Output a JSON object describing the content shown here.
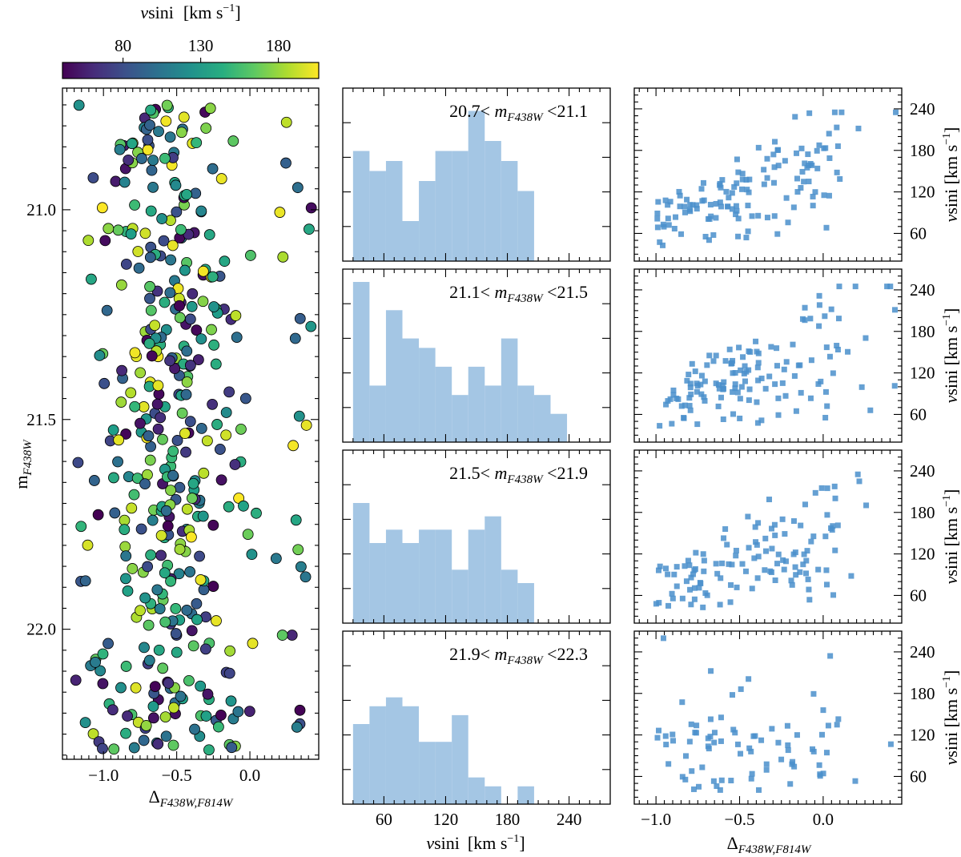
{
  "chart_data": [
    {
      "type": "scatter",
      "name": "cmd-scatter",
      "xlabel_main": "Δ",
      "xlabel_sub": "F438W,F814W",
      "ylabel_main": "m",
      "ylabel_sub": "F438W",
      "xlim": [
        -1.28,
        0.47
      ],
      "ylim": [
        22.31,
        20.71
      ],
      "xticks": [
        -1.0,
        -0.5,
        0.0
      ],
      "xtick_labels": [
        "−1.0",
        "−0.5",
        "0.0"
      ],
      "yticks": [
        21.0,
        21.5,
        22.0
      ],
      "ytick_labels": [
        "21.0",
        "21.5",
        "22.0"
      ],
      "colorbar": {
        "title_italic": "v",
        "title_rest": "sini",
        "title_units": "[km s",
        "title_sup": "−1",
        "title_close": "]",
        "range": [
          41,
          206
        ],
        "ticks": [
          80,
          130,
          180
        ],
        "tick_labels": [
          "80",
          "130",
          "180"
        ],
        "colormap": "viridis"
      },
      "n_points": 420,
      "note": "color encodes vsini"
    },
    {
      "type": "histogram",
      "name": "vsini-histograms",
      "xlabel_italic": "v",
      "xlabel_rest": "sini",
      "xlabel_units": "[km s",
      "xlabel_sup": "−1",
      "xlabel_close": "]",
      "xlim": [
        20,
        280
      ],
      "xticks": [
        60,
        120,
        180,
        240
      ],
      "xtick_labels": [
        "60",
        "120",
        "180",
        "240"
      ],
      "bin_edges": [
        30,
        46,
        62,
        78,
        94,
        110,
        126,
        142,
        158,
        174,
        190,
        206,
        222,
        238,
        254
      ],
      "color": "#a4c6e4",
      "panels": [
        {
          "label_low": "20.7",
          "label_high": "21.1",
          "counts": [
            11,
            9,
            10,
            4,
            8,
            11,
            11,
            15,
            12,
            10,
            7,
            0,
            0,
            0
          ],
          "ymax": 16
        },
        {
          "label_low": "21.1",
          "label_high": "21.5",
          "counts": [
            17,
            6,
            14,
            11,
            10,
            8,
            5,
            8,
            6,
            11,
            6,
            5,
            3,
            0
          ],
          "ymax": 17
        },
        {
          "label_low": "21.5",
          "label_high": "21.9",
          "counts": [
            9,
            6,
            7,
            6,
            7,
            7,
            4,
            7,
            8,
            4,
            3,
            0,
            0,
            0
          ],
          "ymax": 12
        },
        {
          "label_low": "21.9",
          "label_high": "22.3",
          "counts": [
            9,
            11,
            12,
            11,
            7,
            7,
            10,
            3,
            2,
            0,
            2,
            0,
            0,
            0
          ],
          "ymax": 18
        }
      ],
      "label_symbol_main": "m",
      "label_symbol_sub": "F438W",
      "label_lt": "<"
    },
    {
      "type": "scatter",
      "name": "vsini-vs-color",
      "xlabel_main": "Δ",
      "xlabel_sub": "F438W,F814W",
      "ylabel_italic": "v",
      "ylabel_rest": "sini",
      "ylabel_units": "[km s",
      "ylabel_sup": "−1",
      "ylabel_close": "]",
      "xlim": [
        -1.13,
        0.47
      ],
      "ylim": [
        20,
        270
      ],
      "xticks": [
        -1.0,
        -0.5,
        0.0
      ],
      "xtick_labels": [
        "−1.0",
        "−0.5",
        "0.0"
      ],
      "yticks": [
        60,
        120,
        180,
        240
      ],
      "ytick_labels": [
        "60",
        "120",
        "180",
        "240"
      ],
      "marker_color": "#4a8fcb",
      "panels": [
        {
          "n_points": 130,
          "seed": 7
        },
        {
          "n_points": 135,
          "seed": 19
        },
        {
          "n_points": 120,
          "seed": 31
        },
        {
          "n_points": 80,
          "seed": 43
        }
      ]
    }
  ]
}
